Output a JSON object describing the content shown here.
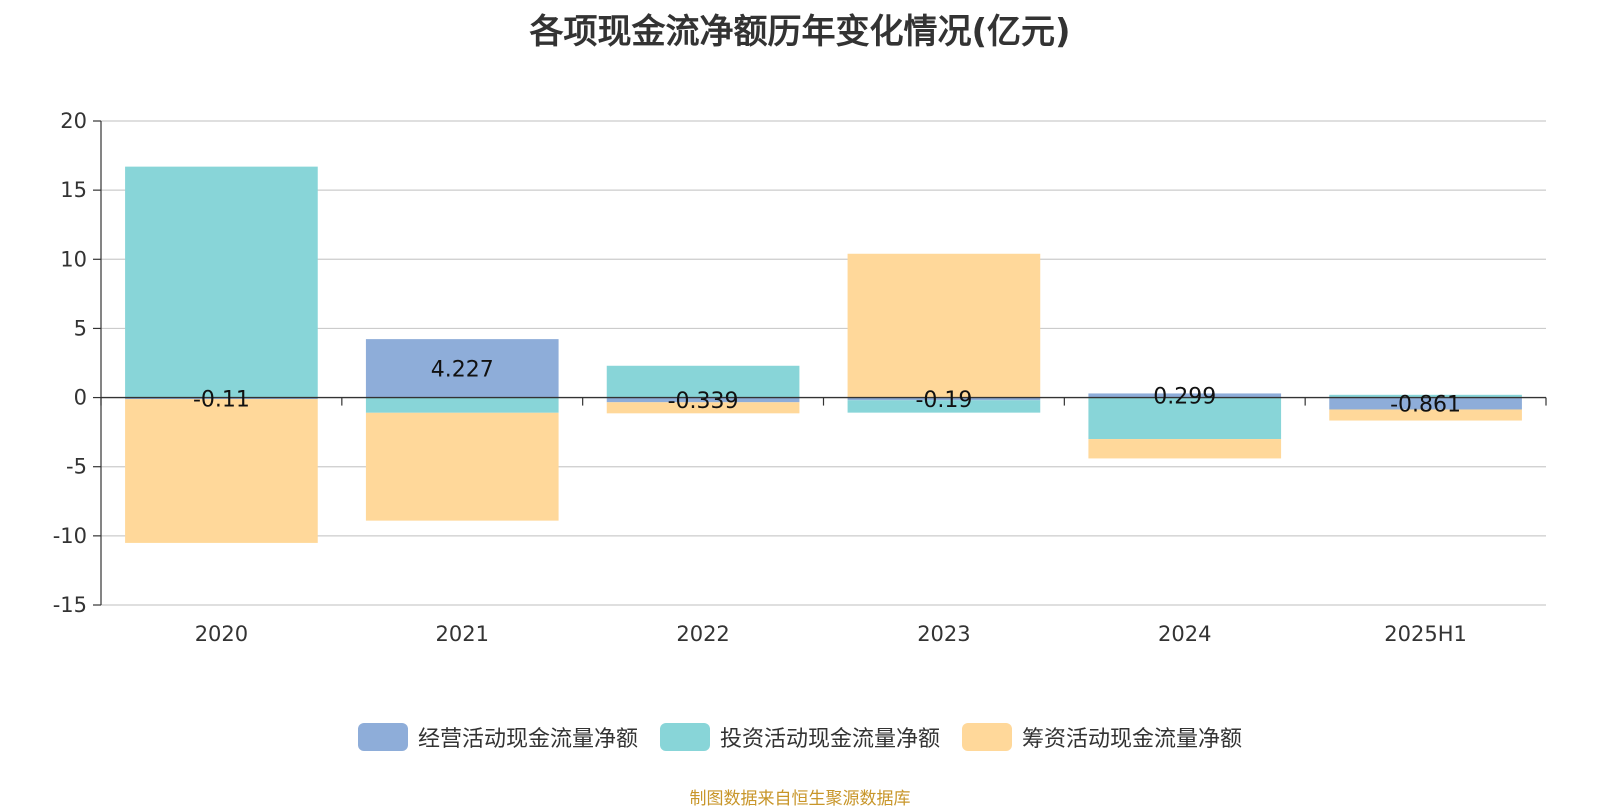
{
  "chart_data": {
    "type": "bar",
    "stacked": true,
    "title": "各项现金流净额历年变化情况(亿元)",
    "categories": [
      "2020",
      "2021",
      "2022",
      "2023",
      "2024",
      "2025H1"
    ],
    "ylim": [
      -15,
      20
    ],
    "yticks": [
      20,
      15,
      10,
      5,
      0,
      -5,
      -10,
      -15
    ],
    "grid": true,
    "legend_position": "bottom",
    "series": [
      {
        "name": "经营活动现金流量净额",
        "color": "#8eadd9",
        "values": [
          -0.11,
          4.227,
          -0.339,
          -0.19,
          0.299,
          -0.861
        ],
        "labels": [
          "-0.11",
          "4.227",
          "-0.339",
          "-0.19",
          "0.299",
          "-0.861"
        ]
      },
      {
        "name": "投资活动现金流量净额",
        "color": "#88d5d8",
        "values": [
          16.7,
          -1.1,
          2.3,
          -0.9,
          -3.0,
          0.2
        ]
      },
      {
        "name": "筹资活动现金流量净额",
        "color": "#ffd89a",
        "values": [
          -10.4,
          -7.8,
          -0.8,
          10.4,
          -1.4,
          -0.8
        ]
      }
    ]
  },
  "source_note": "制图数据来自恒生聚源数据库"
}
